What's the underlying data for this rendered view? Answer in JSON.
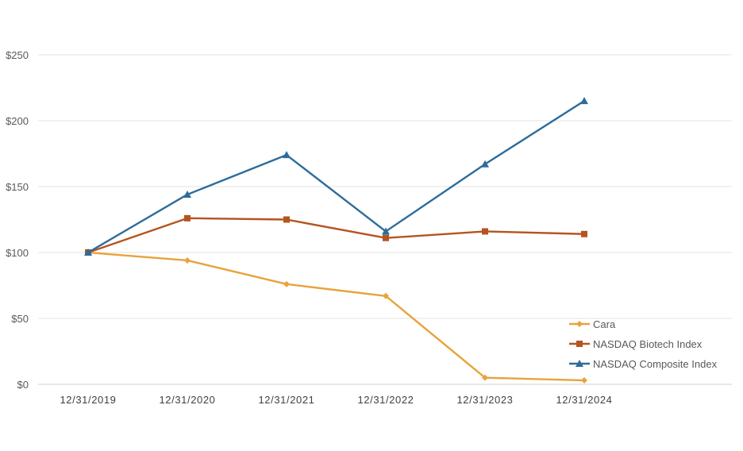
{
  "chart_data": {
    "type": "line",
    "title": "",
    "xlabel": "",
    "ylabel": "",
    "categories": [
      "12/31/2019",
      "12/31/2020",
      "12/31/2021",
      "12/31/2022",
      "12/31/2023",
      "12/31/2024"
    ],
    "yticks": [
      "$0",
      "$50",
      "$100",
      "$150",
      "$200",
      "$250"
    ],
    "ylim": [
      0,
      250
    ],
    "grid": true,
    "legend_position": "bottom-right",
    "series": [
      {
        "name": "Cara",
        "color": "#E8A33A",
        "marker": "diamond",
        "values": [
          100,
          94,
          76,
          67,
          5,
          3
        ]
      },
      {
        "name": "NASDAQ Biotech Index",
        "color": "#B5541F",
        "marker": "square",
        "values": [
          100,
          126,
          125,
          111,
          116,
          114
        ]
      },
      {
        "name": "NASDAQ Composite Index",
        "color": "#2E6C99",
        "marker": "triangle",
        "values": [
          100,
          144,
          174,
          116,
          167,
          215
        ]
      }
    ]
  }
}
